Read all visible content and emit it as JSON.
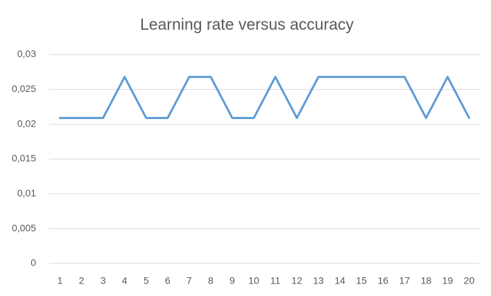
{
  "chart_data": {
    "type": "line",
    "title": "Learning rate versus accuracy",
    "categories": [
      "1",
      "2",
      "3",
      "4",
      "5",
      "6",
      "7",
      "8",
      "9",
      "10",
      "11",
      "12",
      "13",
      "14",
      "15",
      "16",
      "17",
      "18",
      "19",
      "20"
    ],
    "series": [
      {
        "color": "#5b9bd5",
        "values": [
          0.0209,
          0.0209,
          0.0209,
          0.0268,
          0.0209,
          0.0209,
          0.0268,
          0.0268,
          0.0209,
          0.0209,
          0.0268,
          0.0209,
          0.0268,
          0.0268,
          0.0268,
          0.0268,
          0.0268,
          0.0209,
          0.0268,
          0.0209
        ]
      }
    ],
    "ylim": [
      0,
      0.03
    ],
    "yticks": [
      0,
      {
        "value": 0.005,
        "label": "0,005"
      },
      {
        "value": 0.01,
        "label": "0,01"
      },
      {
        "value": 0.015,
        "label": "0,015"
      },
      {
        "value": 0.02,
        "label": "0,02"
      },
      {
        "value": 0.025,
        "label": "0,025"
      },
      {
        "value": 0.03,
        "label": "0,03"
      }
    ],
    "grid": true
  }
}
